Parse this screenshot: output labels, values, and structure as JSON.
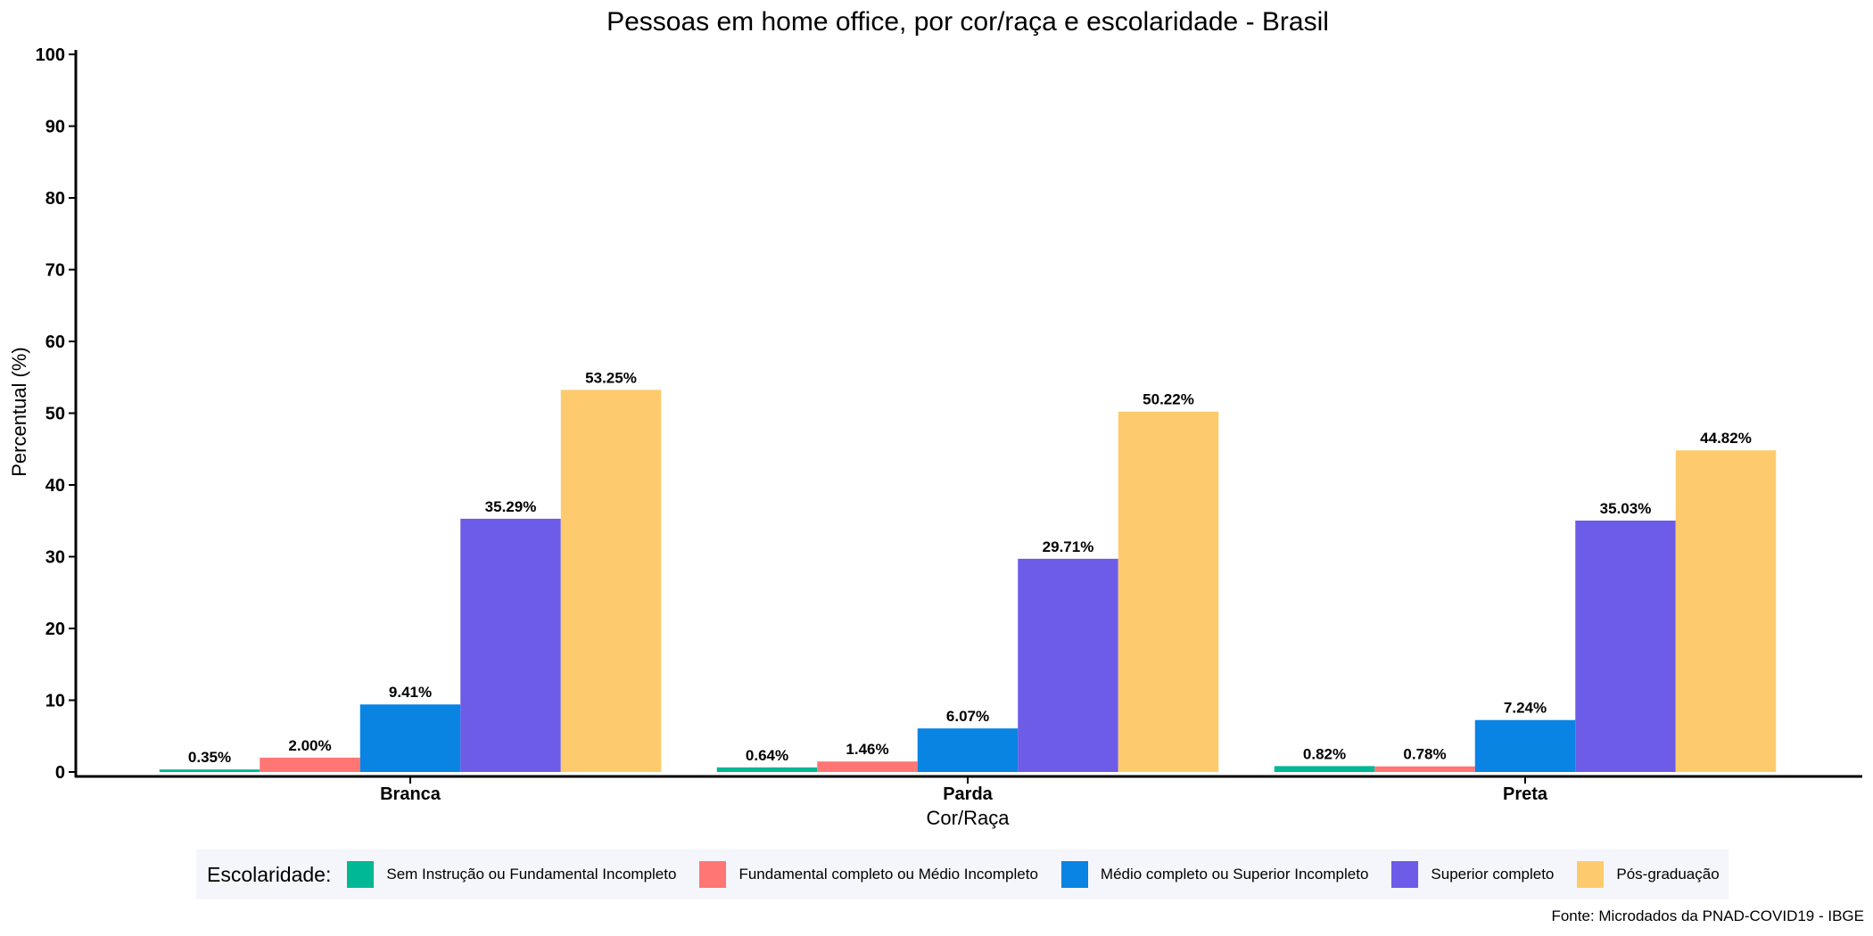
{
  "chart_data": {
    "type": "bar",
    "title": "Pessoas em home office, por cor/raça e escolaridade - Brasil",
    "xlabel": "Cor/Raça",
    "ylabel": "Percentual (%)",
    "ylim": [
      0,
      100
    ],
    "yticks": [
      0,
      10,
      20,
      30,
      40,
      50,
      60,
      70,
      80,
      90,
      100
    ],
    "categories": [
      "Branca",
      "Parda",
      "Preta"
    ],
    "series": [
      {
        "name": "Sem Instrução ou Fundamental Incompleto",
        "color": "#00b894",
        "values": [
          0.35,
          0.64,
          0.82
        ],
        "labels": [
          "0.35%",
          "0.64%",
          "0.82%"
        ]
      },
      {
        "name": "Fundamental completo ou Médio Incompleto",
        "color": "#ff7675",
        "values": [
          2.0,
          1.46,
          0.78
        ],
        "labels": [
          "2.00%",
          "1.46%",
          "0.78%"
        ]
      },
      {
        "name": "Médio completo ou Superior Incompleto",
        "color": "#0984e3",
        "values": [
          9.41,
          6.07,
          7.24
        ],
        "labels": [
          "9.41%",
          "6.07%",
          "7.24%"
        ]
      },
      {
        "name": "Superior completo",
        "color": "#6c5ce7",
        "values": [
          35.29,
          29.71,
          35.03
        ],
        "labels": [
          "35.29%",
          "29.71%",
          "35.03%"
        ]
      },
      {
        "name": "Pós-graduação",
        "color": "#fdcb6e",
        "values": [
          53.25,
          50.22,
          44.82
        ],
        "labels": [
          "53.25%",
          "50.22%",
          "44.82%"
        ]
      }
    ],
    "grid": false,
    "legend": {
      "title": "Escolaridade:",
      "position": "bottom"
    },
    "caption": "Fonte: Microdados da PNAD-COVID19 - IBGE"
  }
}
